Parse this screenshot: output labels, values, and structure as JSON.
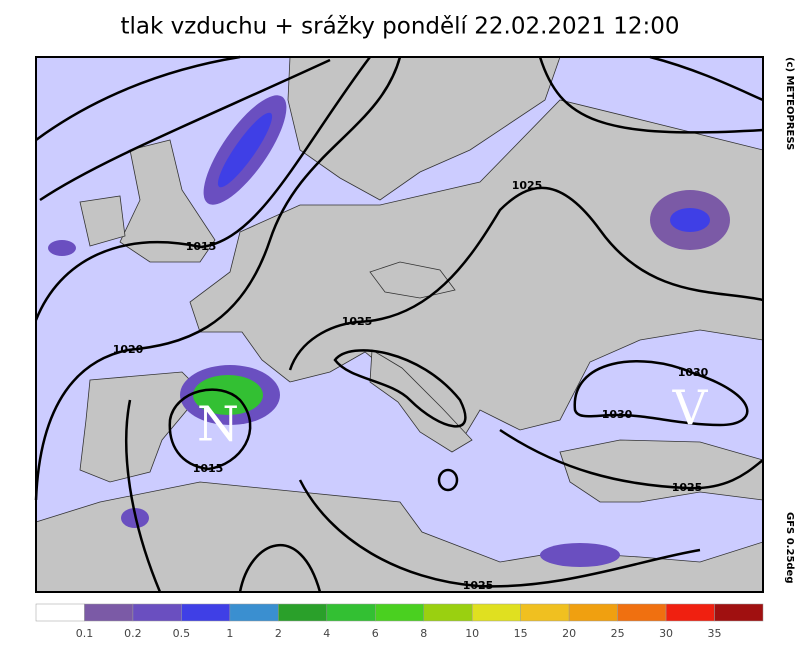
{
  "header": {
    "title": "tlak vzduchu + srážky pondělí 22.02.2021 12:00"
  },
  "map": {
    "isobar_labels": [
      "1015",
      "1025",
      "1025",
      "1020",
      "1030",
      "1030",
      "1015",
      "1025",
      "1025"
    ],
    "pressure_centers": [
      "N",
      "V"
    ],
    "credits": [
      "(c) METEOPRESS",
      "GFS 0.25deg"
    ]
  },
  "legend": {
    "labels": [
      "0.1",
      "0.2",
      "0.5",
      "1",
      "2",
      "4",
      "6",
      "8",
      "10",
      "15",
      "20",
      "25",
      "30",
      "35"
    ]
  }
}
